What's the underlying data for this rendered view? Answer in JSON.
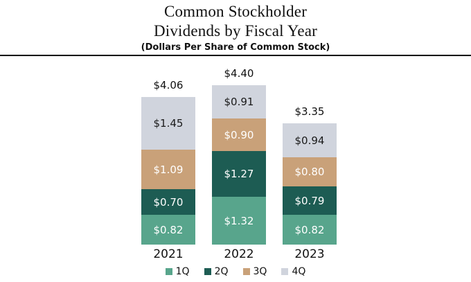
{
  "header": {
    "title_line1": "Common Stockholder",
    "title_line2": "Dividends by Fiscal Year",
    "subtitle": "(Dollars Per Share of Common Stock)"
  },
  "chart_data": {
    "type": "bar",
    "stacked": true,
    "title": "Common Stockholder Dividends by Fiscal Year",
    "subtitle": "(Dollars Per Share of Common Stock)",
    "categories": [
      "2021",
      "2022",
      "2023"
    ],
    "series": [
      {
        "name": "1Q",
        "color": "#58a58c",
        "label_color": "#ffffff",
        "values": [
          0.82,
          1.32,
          0.82
        ],
        "labels": [
          "$0.82",
          "$1.32",
          "$0.82"
        ]
      },
      {
        "name": "2Q",
        "color": "#1d5c53",
        "label_color": "#ffffff",
        "values": [
          0.7,
          1.27,
          0.79
        ],
        "labels": [
          "$0.70",
          "$1.27",
          "$0.79"
        ]
      },
      {
        "name": "3Q",
        "color": "#c9a179",
        "label_color": "#ffffff",
        "values": [
          1.09,
          0.9,
          0.8
        ],
        "labels": [
          "$1.09",
          "$0.90",
          "$0.80"
        ]
      },
      {
        "name": "4Q",
        "color": "#d0d4dd",
        "label_color": "#1a1a1a",
        "values": [
          1.45,
          0.91,
          0.94
        ],
        "labels": [
          "$1.45",
          "$0.91",
          "$0.94"
        ]
      }
    ],
    "totals": [
      4.06,
      4.4,
      3.35
    ],
    "total_labels": [
      "$4.06",
      "$4.40",
      "$3.35"
    ],
    "legend": [
      "1Q",
      "2Q",
      "3Q",
      "4Q"
    ],
    "legend_position": "bottom",
    "axes_visible": false,
    "gridlines": false,
    "divider_color": "#000000",
    "background_color": "#ffffff"
  }
}
